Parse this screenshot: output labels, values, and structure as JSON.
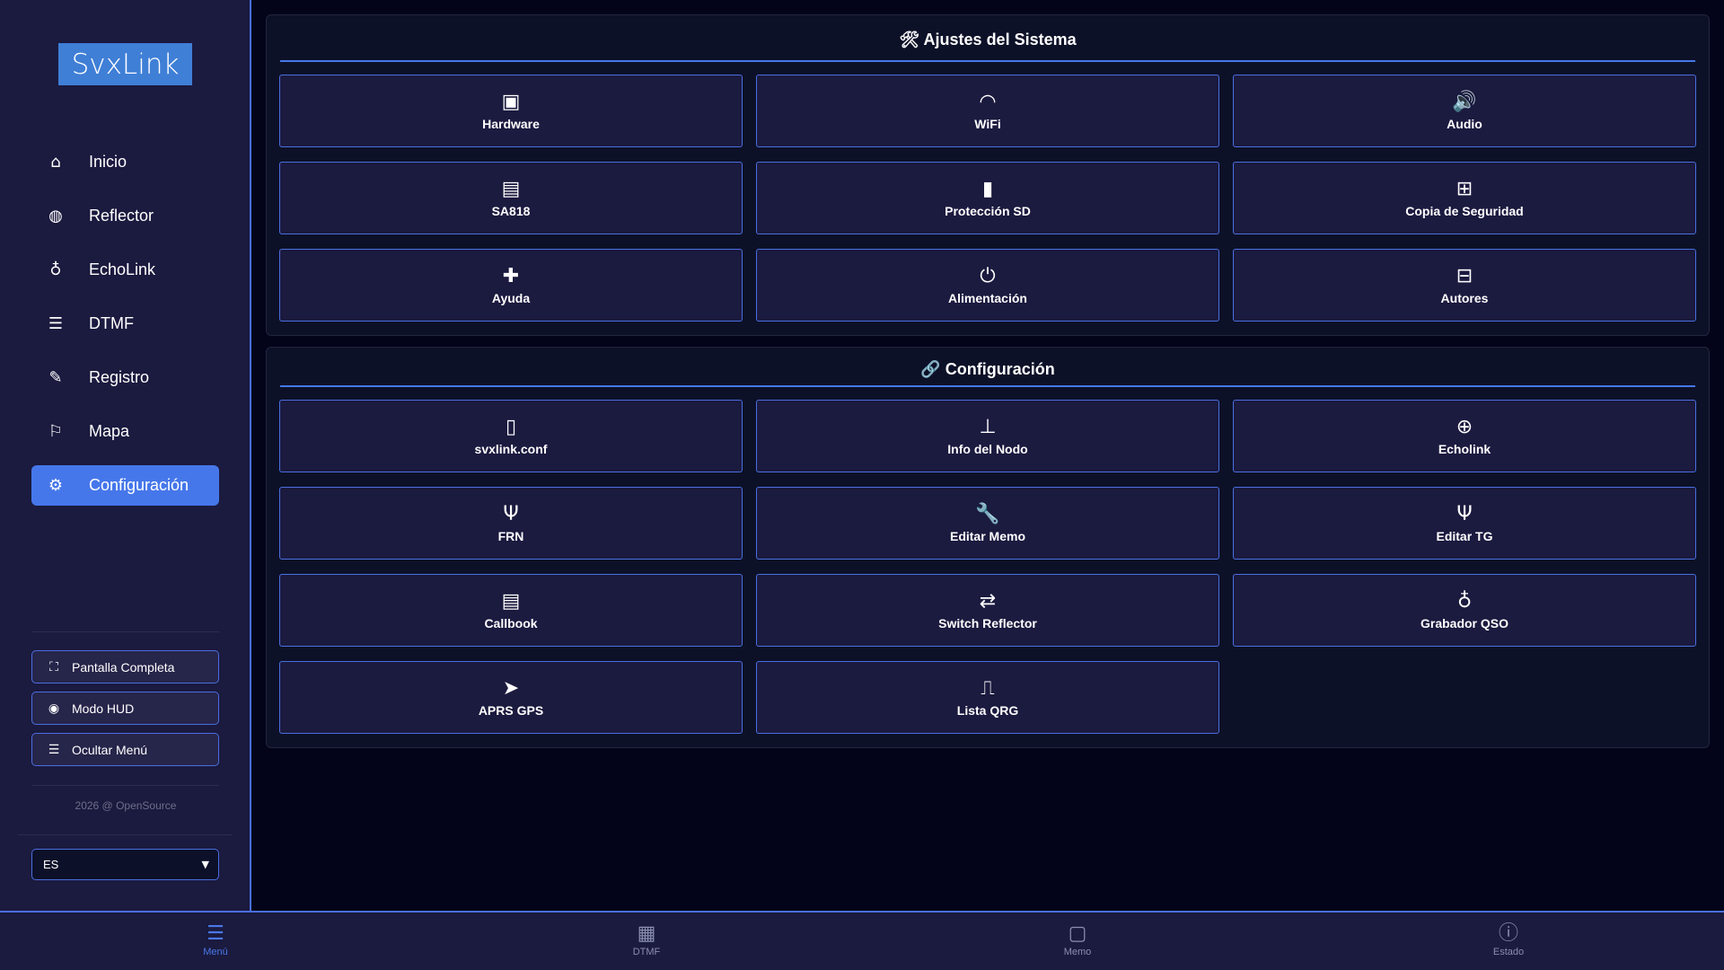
{
  "sidebar": {
    "logo": "SvxLink",
    "items": [
      {
        "label": "Inicio",
        "icon": "home-icon",
        "glyph": "⌂"
      },
      {
        "label": "Reflector",
        "icon": "globe-icon",
        "glyph": "◍"
      },
      {
        "label": "EchoLink",
        "icon": "microphone-icon",
        "glyph": "♁"
      },
      {
        "label": "DTMF",
        "icon": "list-icon",
        "glyph": "☰"
      },
      {
        "label": "Registro",
        "icon": "pencil-icon",
        "glyph": "✎"
      },
      {
        "label": "Mapa",
        "icon": "map-icon",
        "glyph": "⚐"
      },
      {
        "label": "Configuración",
        "icon": "gear-icon",
        "glyph": "⚙",
        "active": true
      }
    ],
    "buttons": [
      {
        "label": "Pantalla Completa",
        "icon": "expand-icon",
        "glyph": "⛶"
      },
      {
        "label": "Modo HUD",
        "icon": "eye-icon",
        "glyph": "◉"
      },
      {
        "label": "Ocultar Menú",
        "icon": "bars-icon",
        "glyph": "☰"
      }
    ],
    "footer": "2026 @ OpenSource",
    "language": "ES"
  },
  "system": {
    "title": "🛠 Ajustes del Sistema",
    "cards": [
      {
        "label": "Hardware",
        "icon": "microchip-icon",
        "glyph": "▣"
      },
      {
        "label": "WiFi",
        "icon": "wifi-icon",
        "glyph": "◠"
      },
      {
        "label": "Audio",
        "icon": "volume-icon",
        "glyph": "🔊"
      },
      {
        "label": "SA818",
        "icon": "memory-icon",
        "glyph": "▤"
      },
      {
        "label": "Protección SD",
        "icon": "sd-card-icon",
        "glyph": "▮"
      },
      {
        "label": "Copia de Seguridad",
        "icon": "medkit-icon",
        "glyph": "⊞"
      },
      {
        "label": "Ayuda",
        "icon": "ambulance-icon",
        "glyph": "✚"
      },
      {
        "label": "Alimentación",
        "icon": "power-icon",
        "glyph": "⏻"
      },
      {
        "label": "Autores",
        "icon": "book-open-icon",
        "glyph": "⊟"
      }
    ]
  },
  "config": {
    "title": "🔗 Configuración",
    "cards": [
      {
        "label": "svxlink.conf",
        "icon": "file-code-icon",
        "glyph": "▯"
      },
      {
        "label": "Info del Nodo",
        "icon": "sitemap-icon",
        "glyph": "⊥"
      },
      {
        "label": "Echolink",
        "icon": "globe-icon",
        "glyph": "⊕"
      },
      {
        "label": "FRN",
        "icon": "broadcast-tower-icon",
        "glyph": "Ψ"
      },
      {
        "label": "Editar Memo",
        "icon": "wrench-icon",
        "glyph": "🔧"
      },
      {
        "label": "Editar TG",
        "icon": "broadcast-tower-icon",
        "glyph": "Ψ"
      },
      {
        "label": "Callbook",
        "icon": "book-icon",
        "glyph": "▤"
      },
      {
        "label": "Switch Reflector",
        "icon": "exchange-icon",
        "glyph": "⇄"
      },
      {
        "label": "Grabador QSO",
        "icon": "microphone-icon",
        "glyph": "♁"
      },
      {
        "label": "APRS GPS",
        "icon": "location-arrow-icon",
        "glyph": "➤"
      },
      {
        "label": "Lista QRG",
        "icon": "wave-square-icon",
        "glyph": "⎍"
      }
    ]
  },
  "bottom_nav": [
    {
      "label": "Menú",
      "icon": "bars-icon",
      "glyph": "☰",
      "active": true
    },
    {
      "label": "DTMF",
      "icon": "keypad-icon",
      "glyph": "▦"
    },
    {
      "label": "Memo",
      "icon": "sticky-note-icon",
      "glyph": "▢"
    },
    {
      "label": "Estado",
      "icon": "info-circle-icon",
      "glyph": "ⓘ"
    }
  ],
  "colors": {
    "accent": "#4677ea",
    "sidebar_bg": "#1b1a3f",
    "main_bg": "#03031a",
    "panel_bg": "#0d1128"
  }
}
